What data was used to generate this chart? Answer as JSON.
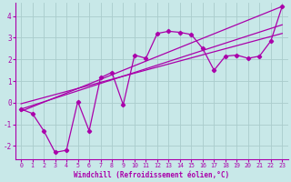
{
  "xlabel": "Windchill (Refroidissement éolien,°C)",
  "bg_color": "#c8e8e8",
  "line_color": "#aa00aa",
  "grid_color": "#b0d0d0",
  "xlim": [
    -0.5,
    23.5
  ],
  "ylim": [
    -2.6,
    4.6
  ],
  "xticks": [
    0,
    1,
    2,
    3,
    4,
    5,
    6,
    7,
    8,
    9,
    10,
    11,
    12,
    13,
    14,
    15,
    16,
    17,
    18,
    19,
    20,
    21,
    22,
    23
  ],
  "yticks": [
    -2,
    -1,
    0,
    1,
    2,
    3,
    4
  ],
  "data_line": [
    [
      0,
      -0.3
    ],
    [
      1,
      -0.5
    ],
    [
      2,
      -1.3
    ],
    [
      3,
      -2.3
    ],
    [
      4,
      -2.2
    ],
    [
      5,
      0.05
    ],
    [
      6,
      -1.3
    ],
    [
      7,
      1.15
    ],
    [
      8,
      1.4
    ],
    [
      9,
      -0.1
    ],
    [
      10,
      2.2
    ],
    [
      11,
      2.05
    ],
    [
      12,
      3.2
    ],
    [
      13,
      3.3
    ],
    [
      14,
      3.25
    ],
    [
      15,
      3.15
    ],
    [
      16,
      2.5
    ],
    [
      17,
      1.5
    ],
    [
      18,
      2.15
    ],
    [
      19,
      2.2
    ],
    [
      20,
      2.05
    ],
    [
      21,
      2.15
    ],
    [
      22,
      2.85
    ],
    [
      23,
      4.45
    ]
  ],
  "trend_lines": [
    {
      "x0": 0,
      "x1": 23,
      "y0": -0.4,
      "y1": 4.45
    },
    {
      "x0": 0,
      "x1": 23,
      "y0": -0.3,
      "y1": 3.6
    },
    {
      "x0": 0,
      "x1": 23,
      "y0": -0.05,
      "y1": 3.2
    }
  ]
}
